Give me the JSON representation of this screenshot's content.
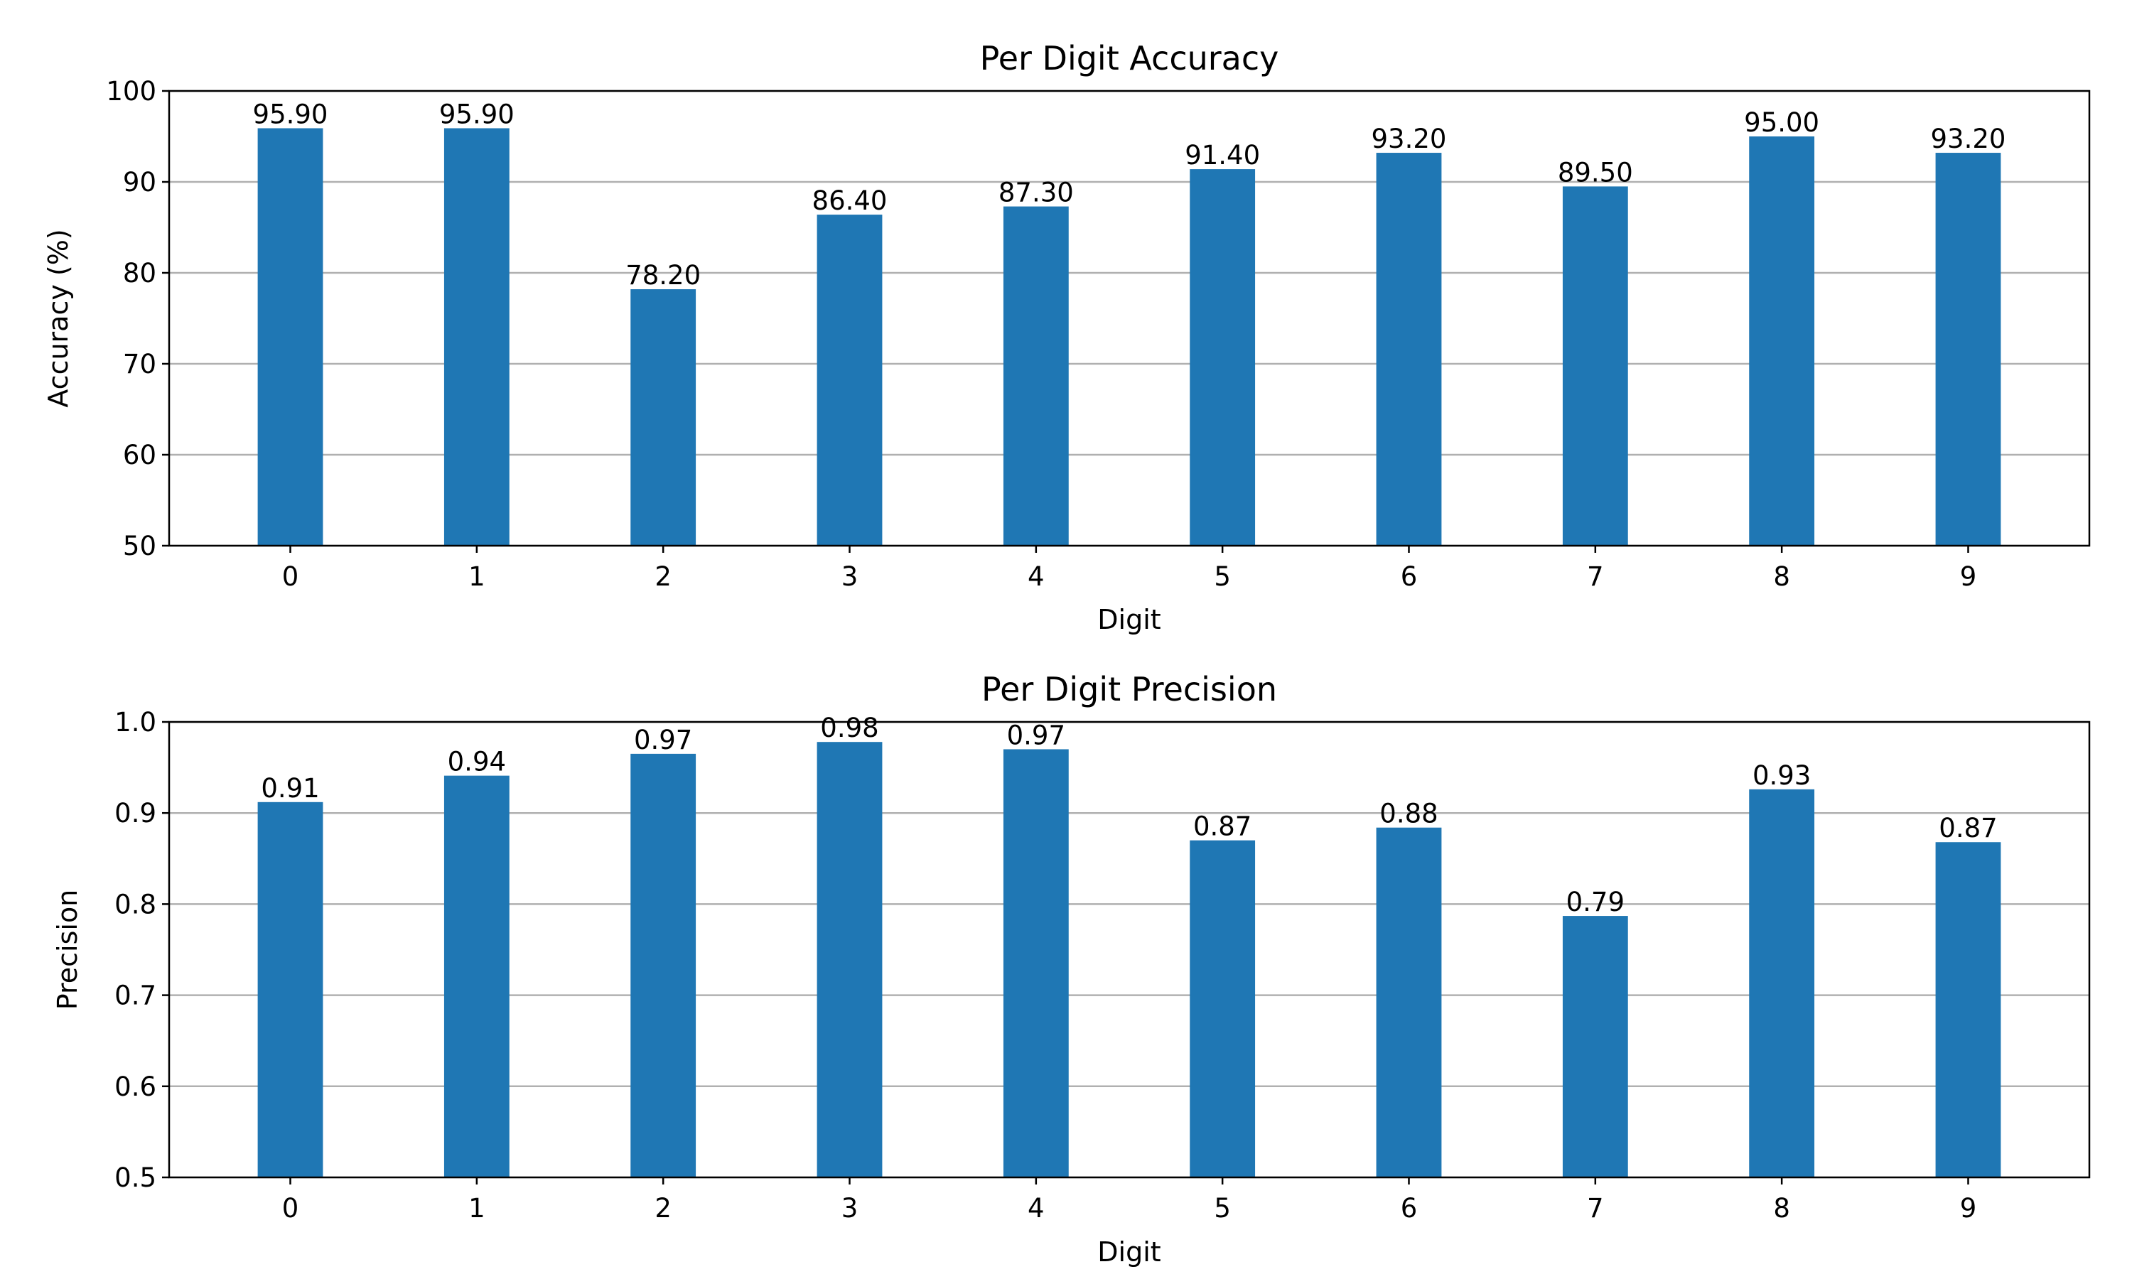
{
  "chart_data": [
    {
      "type": "bar",
      "title": "Per Digit Accuracy",
      "xlabel": "Digit",
      "ylabel": "Accuracy (%)",
      "categories": [
        "0",
        "1",
        "2",
        "3",
        "4",
        "5",
        "6",
        "7",
        "8",
        "9"
      ],
      "values": [
        95.9,
        95.9,
        78.2,
        86.4,
        87.3,
        91.4,
        93.2,
        89.5,
        95.0,
        93.2
      ],
      "value_labels": [
        "95.90",
        "95.90",
        "78.20",
        "86.40",
        "87.30",
        "91.40",
        "93.20",
        "89.50",
        "95.00",
        "93.20"
      ],
      "ylim": [
        50,
        100
      ],
      "yticks": [
        50,
        60,
        70,
        80,
        90,
        100
      ],
      "ytick_labels": [
        "50",
        "60",
        "70",
        "80",
        "90",
        "100"
      ],
      "grid": "horizontal",
      "bar_color": "#1f77b4"
    },
    {
      "type": "bar",
      "title": "Per Digit Precision",
      "xlabel": "Digit",
      "ylabel": "Precision",
      "categories": [
        "0",
        "1",
        "2",
        "3",
        "4",
        "5",
        "6",
        "7",
        "8",
        "9"
      ],
      "values": [
        0.912,
        0.941,
        0.965,
        0.978,
        0.97,
        0.87,
        0.884,
        0.787,
        0.926,
        0.868
      ],
      "value_labels": [
        "0.91",
        "0.94",
        "0.97",
        "0.98",
        "0.97",
        "0.87",
        "0.88",
        "0.79",
        "0.93",
        "0.87"
      ],
      "ylim": [
        0.5,
        1.0
      ],
      "yticks": [
        0.5,
        0.6,
        0.7,
        0.8,
        0.9,
        1.0
      ],
      "ytick_labels": [
        "0.5",
        "0.6",
        "0.7",
        "0.8",
        "0.9",
        "1.0"
      ],
      "grid": "horizontal",
      "bar_color": "#1f77b4"
    }
  ]
}
